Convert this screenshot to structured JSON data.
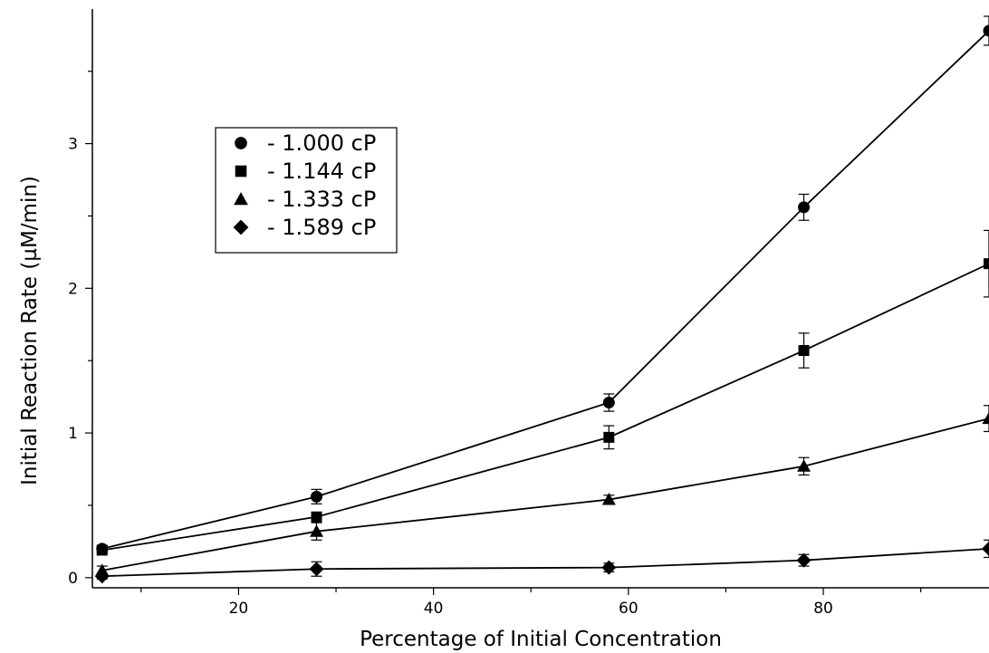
{
  "chart_data": {
    "type": "line",
    "xlabel": "Percentage of Initial Concentration",
    "ylabel": "Initial Reaction Rate (µM/min)",
    "xlim": [
      5,
      97
    ],
    "ylim": [
      -0.07,
      3.93
    ],
    "x_ticks": [
      20,
      40,
      60,
      80
    ],
    "y_ticks": [
      0,
      1,
      2,
      3
    ],
    "legend_position": "upper-left",
    "grid": false,
    "series": [
      {
        "name": "- 1.000 cP",
        "marker": "circle",
        "x": [
          6,
          28,
          58,
          78,
          97
        ],
        "y": [
          0.2,
          0.56,
          1.21,
          2.56,
          3.78
        ],
        "error": [
          0.02,
          0.05,
          0.06,
          0.09,
          0.1
        ]
      },
      {
        "name": "- 1.144 cP",
        "marker": "square",
        "x": [
          6,
          28,
          58,
          78,
          97
        ],
        "y": [
          0.19,
          0.42,
          0.97,
          1.57,
          2.17
        ],
        "error": [
          0.02,
          0.03,
          0.08,
          0.12,
          0.23
        ]
      },
      {
        "name": "- 1.333 cP",
        "marker": "triangle",
        "x": [
          6,
          28,
          58,
          78,
          97
        ],
        "y": [
          0.05,
          0.32,
          0.54,
          0.77,
          1.1
        ],
        "error": [
          0.03,
          0.06,
          0.03,
          0.06,
          0.09
        ]
      },
      {
        "name": "- 1.589 cP",
        "marker": "diamond",
        "x": [
          6,
          28,
          58,
          78,
          97
        ],
        "y": [
          0.01,
          0.06,
          0.07,
          0.12,
          0.2
        ],
        "error": [
          0.02,
          0.05,
          0.03,
          0.04,
          0.06
        ]
      }
    ]
  }
}
